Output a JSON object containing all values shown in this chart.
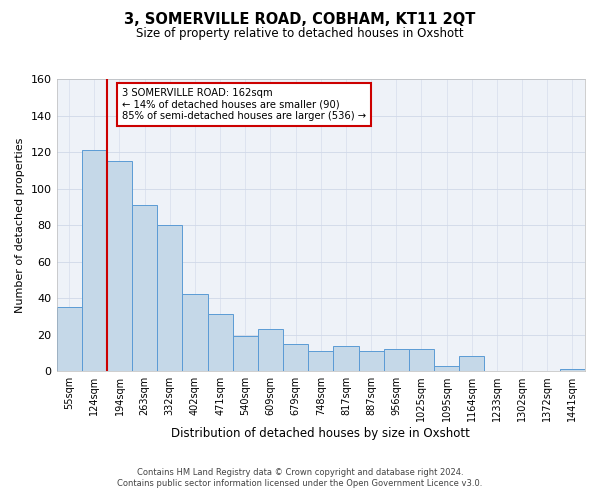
{
  "title": "3, SOMERVILLE ROAD, COBHAM, KT11 2QT",
  "subtitle": "Size of property relative to detached houses in Oxshott",
  "xlabel": "Distribution of detached houses by size in Oxshott",
  "ylabel": "Number of detached properties",
  "bin_labels": [
    "55sqm",
    "124sqm",
    "194sqm",
    "263sqm",
    "332sqm",
    "402sqm",
    "471sqm",
    "540sqm",
    "609sqm",
    "679sqm",
    "748sqm",
    "817sqm",
    "887sqm",
    "956sqm",
    "1025sqm",
    "1095sqm",
    "1164sqm",
    "1233sqm",
    "1302sqm",
    "1372sqm",
    "1441sqm"
  ],
  "bar_heights": [
    35,
    121,
    115,
    91,
    80,
    42,
    31,
    19,
    23,
    15,
    11,
    14,
    11,
    12,
    12,
    3,
    8,
    0,
    0,
    0,
    1
  ],
  "bar_color": "#c5d8e8",
  "bar_edge_color": "#5b9bd5",
  "marker_line_color": "#cc0000",
  "annotation_line1": "3 SOMERVILLE ROAD: 162sqm",
  "annotation_line2": "← 14% of detached houses are smaller (90)",
  "annotation_line3": "85% of semi-detached houses are larger (536) →",
  "annotation_box_color": "#ffffff",
  "annotation_box_edge": "#cc0000",
  "ylim": [
    0,
    160
  ],
  "yticks": [
    0,
    20,
    40,
    60,
    80,
    100,
    120,
    140,
    160
  ],
  "footer_line1": "Contains HM Land Registry data © Crown copyright and database right 2024.",
  "footer_line2": "Contains public sector information licensed under the Open Government Licence v3.0.",
  "grid_color": "#d0d8e8",
  "background_color": "#eef2f8"
}
